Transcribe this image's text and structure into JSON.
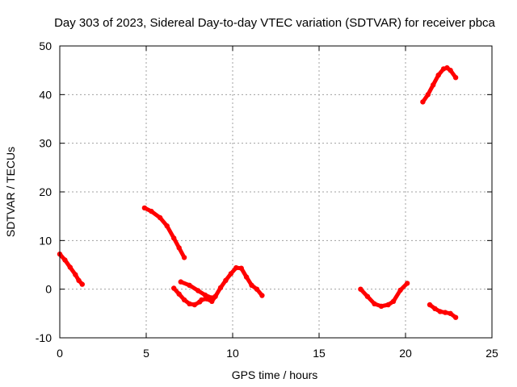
{
  "chart_data": {
    "type": "scatter",
    "title": "Day 303 of 2023, Sidereal Day-to-day VTEC variation (SDTVAR) for receiver pbca",
    "xlabel": "GPS time / hours",
    "ylabel": "SDTVAR / TECUs",
    "xlim": [
      0,
      25
    ],
    "ylim": [
      -10,
      50
    ],
    "xticks": [
      0,
      5,
      10,
      15,
      20,
      25
    ],
    "yticks": [
      -10,
      0,
      10,
      20,
      30,
      40,
      50
    ],
    "grid": true,
    "series": [
      {
        "name": "pbca",
        "color": "#ff0000",
        "segments": [
          {
            "x": [
              0.0,
              0.3,
              0.6,
              0.9,
              1.1,
              1.3
            ],
            "y": [
              7.2,
              6.0,
              4.5,
              3.0,
              1.8,
              1.0
            ]
          },
          {
            "x": [
              4.9,
              5.3,
              5.8,
              6.2,
              6.6,
              6.9,
              7.2
            ],
            "y": [
              16.7,
              16.0,
              14.7,
              13.0,
              10.5,
              8.5,
              6.5
            ]
          },
          {
            "x": [
              6.6,
              6.9,
              7.2,
              7.5,
              7.8,
              8.1
            ],
            "y": [
              0.2,
              -1.0,
              -2.2,
              -3.0,
              -3.2,
              -2.6
            ]
          },
          {
            "x": [
              7.0,
              7.5,
              8.0,
              8.4,
              8.8
            ],
            "y": [
              1.5,
              0.8,
              -0.3,
              -1.2,
              -1.8
            ]
          },
          {
            "x": [
              8.2,
              8.5,
              8.8,
              9.0,
              9.3,
              9.6,
              9.9,
              10.2,
              10.5,
              10.8,
              11.1,
              11.4,
              11.7
            ],
            "y": [
              -2.2,
              -2.0,
              -2.5,
              -1.5,
              0.3,
              1.8,
              3.2,
              4.4,
              4.3,
              2.5,
              0.8,
              0.0,
              -1.3
            ]
          },
          {
            "x": [
              17.4,
              17.8,
              18.2,
              18.6,
              19.0,
              19.3,
              19.7,
              20.1
            ],
            "y": [
              0.0,
              -1.5,
              -3.0,
              -3.5,
              -3.2,
              -2.5,
              -0.2,
              1.2
            ]
          },
          {
            "x": [
              21.0,
              21.3,
              21.6,
              21.9,
              22.2,
              22.4,
              22.6,
              22.9
            ],
            "y": [
              38.5,
              40.0,
              42.0,
              44.0,
              45.3,
              45.5,
              45.0,
              43.5
            ]
          },
          {
            "x": [
              21.4,
              21.7,
              22.0,
              22.3,
              22.6,
              22.9
            ],
            "y": [
              -3.2,
              -4.0,
              -4.6,
              -4.8,
              -5.0,
              -5.8
            ]
          }
        ]
      }
    ]
  }
}
